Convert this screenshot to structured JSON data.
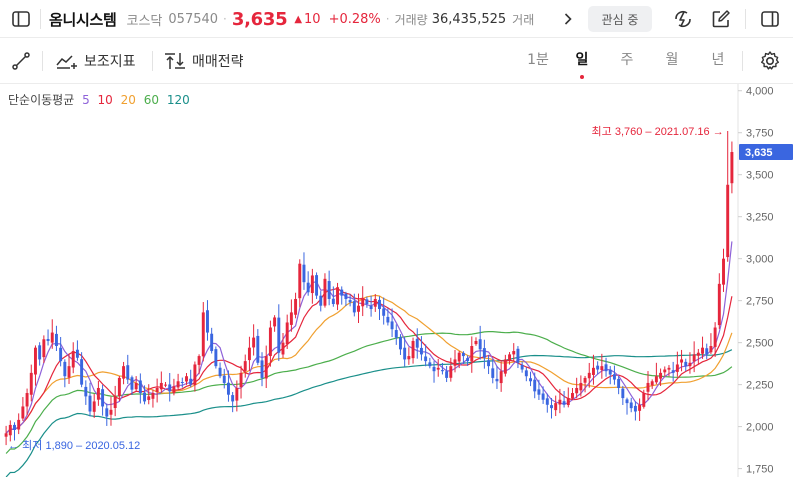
{
  "header": {
    "stock_name": "옴니시스템",
    "market": "코스닥",
    "code": "057540",
    "price": "3,635",
    "change_arrow": "▲",
    "change": "10",
    "change_pct": "+0.28%",
    "volume_label": "거래량",
    "volume": "36,435,525",
    "volume_amount_label": "거래",
    "favorite_label": "관심 중",
    "colors": {
      "up": "#e5263c",
      "down": "#3a66e0"
    },
    "icons": [
      "sidebar-left-icon",
      "chevron-right-icon",
      "lightning-icon",
      "edit-icon",
      "sidebar-right-icon"
    ]
  },
  "toolbar": {
    "draw_icon": "line-draw-icon",
    "indicator_label": "보조지표",
    "strategy_label": "매매전략",
    "periods": [
      "1분",
      "일",
      "주",
      "월",
      "년"
    ],
    "active_period": "일",
    "settings_icon": "gear-icon"
  },
  "legend": {
    "title": "단순이동평균",
    "items": [
      {
        "label": "5",
        "color": "#8e62d9"
      },
      {
        "label": "10",
        "color": "#e5263c"
      },
      {
        "label": "20",
        "color": "#f0a030"
      },
      {
        "label": "60",
        "color": "#4cae4c"
      },
      {
        "label": "120",
        "color": "#1a8f8a"
      }
    ]
  },
  "chart_data": {
    "type": "candlestick",
    "y_ticks": [
      "4,000",
      "3,750",
      "3,500",
      "3,250",
      "3,000",
      "2,750",
      "2,500",
      "2,250",
      "2,000",
      "1,750"
    ],
    "ylim": [
      1700,
      4040
    ],
    "last_price": 3635,
    "last_price_label": "3,635",
    "high": {
      "value": 3760,
      "label": "최고 3,760 – 2021.07.16 →"
    },
    "low": {
      "value": 1890,
      "label": "← 최저 1,890 – 2020.05.12"
    },
    "close_series": [
      1960,
      2010,
      1980,
      2040,
      2120,
      2200,
      2320,
      2470,
      2400,
      2520,
      2510,
      2560,
      2480,
      2390,
      2300,
      2360,
      2450,
      2410,
      2250,
      2180,
      2090,
      2150,
      2230,
      2120,
      2060,
      2100,
      2180,
      2290,
      2360,
      2280,
      2220,
      2260,
      2200,
      2150,
      2180,
      2200,
      2230,
      2260,
      2250,
      2210,
      2240,
      2270,
      2260,
      2300,
      2250,
      2370,
      2420,
      2680,
      2560,
      2450,
      2360,
      2300,
      2260,
      2190,
      2150,
      2230,
      2320,
      2390,
      2470,
      2530,
      2380,
      2290,
      2420,
      2590,
      2650,
      2440,
      2500,
      2620,
      2680,
      2760,
      2970,
      2860,
      2800,
      2900,
      2780,
      2720,
      2880,
      2760,
      2730,
      2830,
      2780,
      2760,
      2740,
      2680,
      2720,
      2760,
      2730,
      2700,
      2760,
      2700,
      2660,
      2620,
      2580,
      2530,
      2460,
      2400,
      2420,
      2510,
      2470,
      2430,
      2390,
      2360,
      2330,
      2350,
      2330,
      2290,
      2360,
      2400,
      2440,
      2420,
      2390,
      2480,
      2510,
      2460,
      2410,
      2360,
      2290,
      2270,
      2330,
      2400,
      2430,
      2450,
      2380,
      2340,
      2300,
      2270,
      2210,
      2190,
      2160,
      2130,
      2110,
      2140,
      2160,
      2130,
      2170,
      2200,
      2230,
      2260,
      2290,
      2320,
      2350,
      2340,
      2360,
      2330,
      2310,
      2280,
      2230,
      2170,
      2140,
      2110,
      2090,
      2130,
      2200,
      2260,
      2270,
      2300,
      2320,
      2340,
      2350,
      2320,
      2370,
      2400,
      2360,
      2380,
      2430,
      2440,
      2470,
      2430,
      2480,
      2590,
      2850,
      3000,
      3440,
      3635
    ]
  }
}
